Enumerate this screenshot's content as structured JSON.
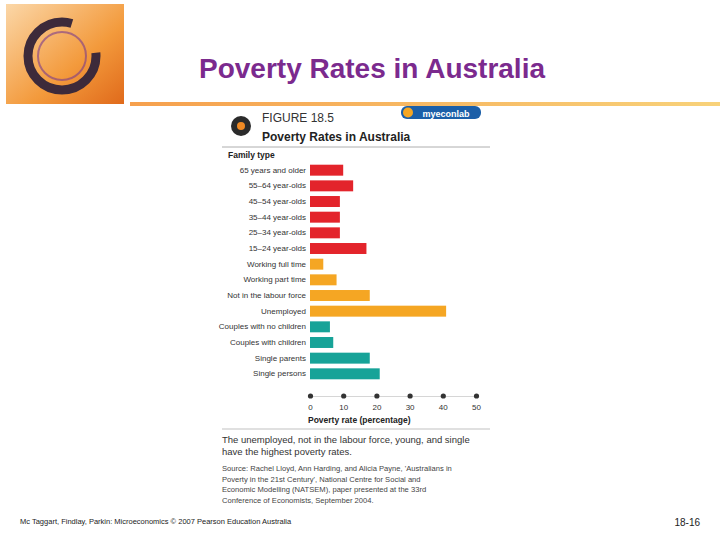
{
  "slide": {
    "title": "Poverty Rates in Australia",
    "figure_label": "FIGURE 18.5",
    "badge": "myeconlab",
    "caption": [
      "The unemployed, not in the labour force, young, and single",
      "have the highest poverty rates."
    ],
    "source": [
      "Source: Rachel Lloyd, Ann Harding, and Alicia Payne, 'Australians in",
      "Poverty in the 21st Century', National Centre for Social and",
      "Economic Modelling (NATSEM), paper presented at the 33rd",
      "Conference of Economists, September 2004."
    ],
    "footer": "Mc Taggart, Findlay, Parkin: Microeconomics © 2007 Pearson Education Australia",
    "page": "18-16"
  },
  "chart_data": {
    "type": "bar",
    "orientation": "horizontal",
    "title": "Poverty Rates in Australia",
    "ylabel": "Family type",
    "xlabel": "Poverty rate (percentage)",
    "categories": [
      "65 years and older",
      "55–64 year-olds",
      "45–54 year-olds",
      "35–44 year-olds",
      "25–34 year-olds",
      "15–24 year-olds",
      "Working full time",
      "Working part time",
      "Not in the labour force",
      "Unemployed",
      "Couples with no children",
      "Couples with children",
      "Single parents",
      "Single persons"
    ],
    "values": [
      10,
      13,
      9,
      9,
      9,
      17,
      4,
      8,
      18,
      41,
      6,
      7,
      18,
      21
    ],
    "colors": [
      "#e3242b",
      "#e3242b",
      "#e3242b",
      "#e3242b",
      "#e3242b",
      "#e3242b",
      "#f5a623",
      "#f5a623",
      "#f5a623",
      "#f5a623",
      "#17a398",
      "#17a398",
      "#17a398",
      "#17a398"
    ],
    "xlim": [
      0,
      50
    ],
    "xticks": [
      0,
      10,
      20,
      30,
      40,
      50
    ],
    "grid": false
  }
}
